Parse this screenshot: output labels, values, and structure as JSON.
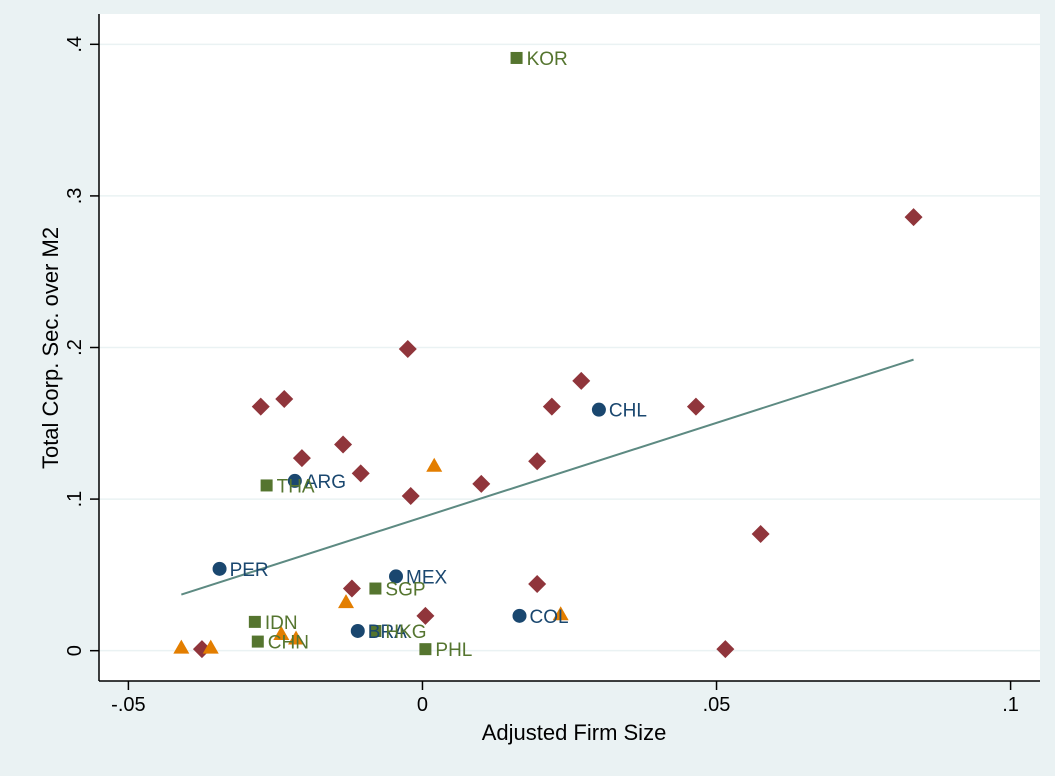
{
  "chart_data": {
    "type": "scatter",
    "title": "",
    "xlabel": "Adjusted Firm Size",
    "ylabel": "Total Corp. Sec. over M2",
    "xlim": [
      -0.055,
      0.105
    ],
    "ylim": [
      -0.02,
      0.42
    ],
    "x_ticks": [
      -0.05,
      0,
      0.05,
      0.1
    ],
    "x_tick_labels": [
      "-.05",
      "0",
      ".05",
      ".1"
    ],
    "y_ticks": [
      0,
      0.1,
      0.2,
      0.3,
      0.4
    ],
    "y_tick_labels": [
      "0",
      ".1",
      ".2",
      ".3",
      ".4"
    ],
    "grid": true,
    "legend": "none",
    "colors": {
      "background": "#eaf2f3",
      "plot_area": "#ffffff",
      "gridline": "#eaf2f3",
      "fit_line": "#5d8a82",
      "latin_america": "#1a476f",
      "east_asia": "#55752f",
      "diamonds": "#90353b",
      "triangles": "#e37e00"
    },
    "series": [
      {
        "marker": "circle",
        "color": "#1a476f",
        "points": [
          {
            "x": 0.03,
            "y": 0.159,
            "label": "CHL"
          },
          {
            "x": -0.0217,
            "y": 0.112,
            "label": "ARG"
          },
          {
            "x": -0.0345,
            "y": 0.054,
            "label": "PER"
          },
          {
            "x": -0.0045,
            "y": 0.049,
            "label": "MEX"
          },
          {
            "x": 0.0165,
            "y": 0.023,
            "label": "COL"
          },
          {
            "x": -0.011,
            "y": 0.013,
            "label": "BRA"
          }
        ]
      },
      {
        "marker": "square",
        "color": "#55752f",
        "points": [
          {
            "x": 0.016,
            "y": 0.391,
            "label": "KOR"
          },
          {
            "x": -0.0265,
            "y": 0.109,
            "label": "THA"
          },
          {
            "x": -0.008,
            "y": 0.041,
            "label": "SGP"
          },
          {
            "x": -0.0285,
            "y": 0.019,
            "label": "IDN"
          },
          {
            "x": -0.008,
            "y": 0.013,
            "label": "HKG"
          },
          {
            "x": -0.028,
            "y": 0.006,
            "label": "CHN"
          },
          {
            "x": 0.0005,
            "y": 0.001,
            "label": "PHL"
          }
        ]
      },
      {
        "marker": "diamond",
        "color": "#90353b",
        "points": [
          {
            "x": 0.0835,
            "y": 0.286
          },
          {
            "x": -0.0025,
            "y": 0.199
          },
          {
            "x": 0.027,
            "y": 0.178
          },
          {
            "x": -0.0235,
            "y": 0.166
          },
          {
            "x": -0.0275,
            "y": 0.161
          },
          {
            "x": 0.022,
            "y": 0.161
          },
          {
            "x": 0.0465,
            "y": 0.161
          },
          {
            "x": -0.0135,
            "y": 0.136
          },
          {
            "x": -0.0205,
            "y": 0.127
          },
          {
            "x": 0.0195,
            "y": 0.125
          },
          {
            "x": -0.0105,
            "y": 0.117
          },
          {
            "x": 0.01,
            "y": 0.11
          },
          {
            "x": -0.002,
            "y": 0.102
          },
          {
            "x": 0.0575,
            "y": 0.077
          },
          {
            "x": 0.0195,
            "y": 0.044
          },
          {
            "x": -0.012,
            "y": 0.041
          },
          {
            "x": 0.0005,
            "y": 0.023
          },
          {
            "x": -0.0375,
            "y": 0.001
          },
          {
            "x": 0.0515,
            "y": 0.001
          }
        ]
      },
      {
        "marker": "triangle",
        "color": "#e37e00",
        "points": [
          {
            "x": 0.002,
            "y": 0.122
          },
          {
            "x": -0.013,
            "y": 0.032
          },
          {
            "x": 0.0235,
            "y": 0.024
          },
          {
            "x": -0.024,
            "y": 0.011
          },
          {
            "x": -0.0215,
            "y": 0.008
          },
          {
            "x": -0.041,
            "y": 0.002
          },
          {
            "x": -0.036,
            "y": 0.002
          }
        ]
      }
    ],
    "fit_line": {
      "type": "line",
      "x": [
        -0.041,
        0.0835
      ],
      "y": [
        0.037,
        0.192
      ]
    }
  }
}
